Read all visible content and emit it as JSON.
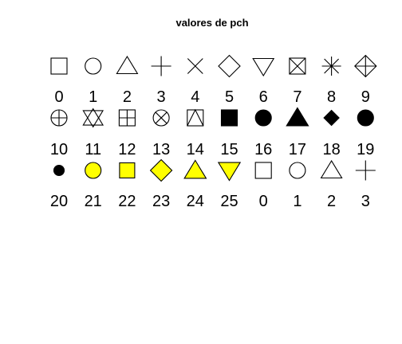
{
  "chart_data": {
    "type": "scatter",
    "title": "valores de pch",
    "xlabel": "",
    "ylabel": "",
    "grid": false,
    "colors": {
      "stroke": "#000000",
      "fill_black": "#000000",
      "fill_yellow": "#ffff00"
    },
    "points": [
      {
        "pch": 0,
        "label": "0",
        "row": 1,
        "col": 1,
        "fill": "none"
      },
      {
        "pch": 1,
        "label": "1",
        "row": 1,
        "col": 2,
        "fill": "none"
      },
      {
        "pch": 2,
        "label": "2",
        "row": 1,
        "col": 3,
        "fill": "none"
      },
      {
        "pch": 3,
        "label": "3",
        "row": 1,
        "col": 4,
        "fill": "none"
      },
      {
        "pch": 4,
        "label": "4",
        "row": 1,
        "col": 5,
        "fill": "none"
      },
      {
        "pch": 5,
        "label": "5",
        "row": 1,
        "col": 6,
        "fill": "none"
      },
      {
        "pch": 6,
        "label": "6",
        "row": 1,
        "col": 7,
        "fill": "none"
      },
      {
        "pch": 7,
        "label": "7",
        "row": 1,
        "col": 8,
        "fill": "none"
      },
      {
        "pch": 8,
        "label": "8",
        "row": 1,
        "col": 9,
        "fill": "none"
      },
      {
        "pch": 9,
        "label": "9",
        "row": 1,
        "col": 10,
        "fill": "none"
      },
      {
        "pch": 10,
        "label": "10",
        "row": 2,
        "col": 1,
        "fill": "none"
      },
      {
        "pch": 11,
        "label": "11",
        "row": 2,
        "col": 2,
        "fill": "none"
      },
      {
        "pch": 12,
        "label": "12",
        "row": 2,
        "col": 3,
        "fill": "none"
      },
      {
        "pch": 13,
        "label": "13",
        "row": 2,
        "col": 4,
        "fill": "none"
      },
      {
        "pch": 14,
        "label": "14",
        "row": 2,
        "col": 5,
        "fill": "none"
      },
      {
        "pch": 15,
        "label": "15",
        "row": 2,
        "col": 6,
        "fill": "black"
      },
      {
        "pch": 16,
        "label": "16",
        "row": 2,
        "col": 7,
        "fill": "black"
      },
      {
        "pch": 17,
        "label": "17",
        "row": 2,
        "col": 8,
        "fill": "black"
      },
      {
        "pch": 18,
        "label": "18",
        "row": 2,
        "col": 9,
        "fill": "black"
      },
      {
        "pch": 19,
        "label": "19",
        "row": 2,
        "col": 10,
        "fill": "black"
      },
      {
        "pch": 20,
        "label": "20",
        "row": 3,
        "col": 1,
        "fill": "black"
      },
      {
        "pch": 21,
        "label": "21",
        "row": 3,
        "col": 2,
        "fill": "yellow"
      },
      {
        "pch": 22,
        "label": "22",
        "row": 3,
        "col": 3,
        "fill": "yellow"
      },
      {
        "pch": 23,
        "label": "23",
        "row": 3,
        "col": 4,
        "fill": "yellow"
      },
      {
        "pch": 24,
        "label": "24",
        "row": 3,
        "col": 5,
        "fill": "yellow"
      },
      {
        "pch": 25,
        "label": "25",
        "row": 3,
        "col": 6,
        "fill": "yellow"
      },
      {
        "pch": 0,
        "label": "0",
        "row": 3,
        "col": 7,
        "fill": "none"
      },
      {
        "pch": 1,
        "label": "1",
        "row": 3,
        "col": 8,
        "fill": "none"
      },
      {
        "pch": 2,
        "label": "2",
        "row": 3,
        "col": 9,
        "fill": "none"
      },
      {
        "pch": 3,
        "label": "3",
        "row": 3,
        "col": 10,
        "fill": "none"
      }
    ]
  }
}
